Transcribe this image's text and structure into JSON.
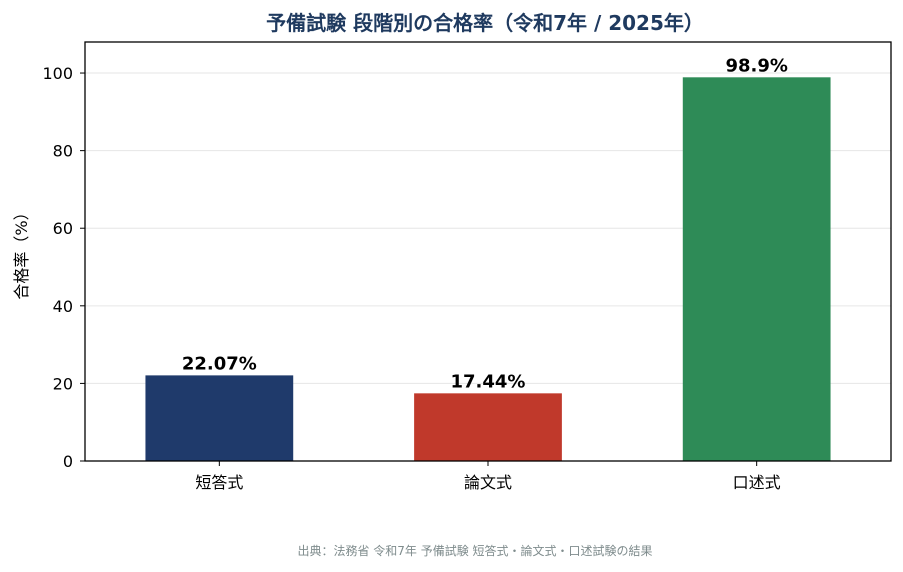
{
  "colors": {
    "title": "#1f3a5f",
    "source": "#7f8c8d",
    "grid": "#e6e6e6",
    "axis": "#000000"
  },
  "chart_data": {
    "type": "bar",
    "title": "予備試験 段階別の合格率（令和7年 / 2025年）",
    "xlabel": "",
    "ylabel": "合格率（%）",
    "ylim": [
      0,
      108
    ],
    "yticks": [
      0,
      20,
      40,
      60,
      80,
      100
    ],
    "grid": true,
    "categories": [
      "短答式",
      "論文式",
      "口述式"
    ],
    "values": [
      22.07,
      17.44,
      98.9
    ],
    "value_labels": [
      "22.07%",
      "17.44%",
      "98.9%"
    ],
    "bar_colors": [
      "#1f3a6b",
      "#c0392b",
      "#2e8b57"
    ]
  },
  "source_note": "出典：法務省 令和7年 予備試験 短答式・論文式・口述試験の結果"
}
